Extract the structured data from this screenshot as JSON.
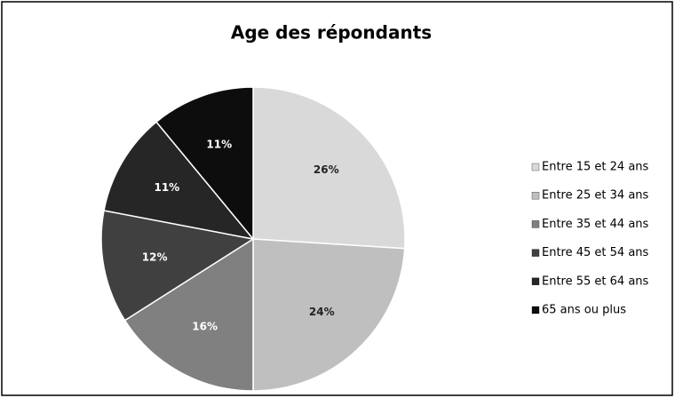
{
  "chart_data": {
    "type": "pie",
    "title": "Age des répondants",
    "categories": [
      "Entre 15 et 24 ans",
      "Entre 25 et 34 ans",
      "Entre 35 et 44 ans",
      "Entre 45 et 54 ans",
      "Entre 55 et 64 ans",
      "65 ans ou plus"
    ],
    "values": [
      26,
      24,
      16,
      12,
      11,
      11
    ],
    "value_labels": [
      "26%",
      "24%",
      "16%",
      "12%",
      "11%",
      "11%"
    ],
    "colors": [
      "#d9d9d9",
      "#bfbfbf",
      "#808080",
      "#404040",
      "#262626",
      "#0d0d0d"
    ],
    "legend": "right"
  }
}
